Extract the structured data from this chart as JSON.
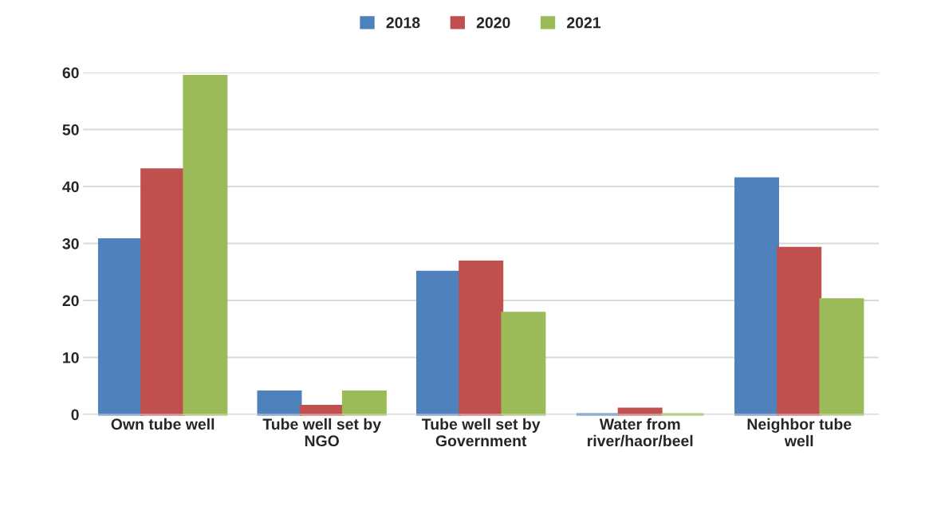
{
  "chart_data": {
    "type": "bar",
    "categories": [
      "Own tube well",
      "Tube well set by\nNGO",
      "Tube well set by\nGovernment",
      "Water from\nriver/haor/beel",
      "Neighbor tube\nwell"
    ],
    "series": [
      {
        "name": "2018",
        "color": "#4f81bd",
        "values": [
          30.7,
          4,
          25,
          0,
          41.4
        ]
      },
      {
        "name": "2020",
        "color": "#c0504d",
        "values": [
          43,
          1.5,
          26.8,
          1,
          29.2
        ]
      },
      {
        "name": "2021",
        "color": "#9bbb59",
        "values": [
          59.4,
          4,
          17.8,
          0,
          20.2
        ]
      }
    ],
    "ylim": [
      0,
      60
    ],
    "yticks": [
      0,
      10,
      20,
      30,
      40,
      50,
      60
    ],
    "grid": "y",
    "legend": "top"
  }
}
